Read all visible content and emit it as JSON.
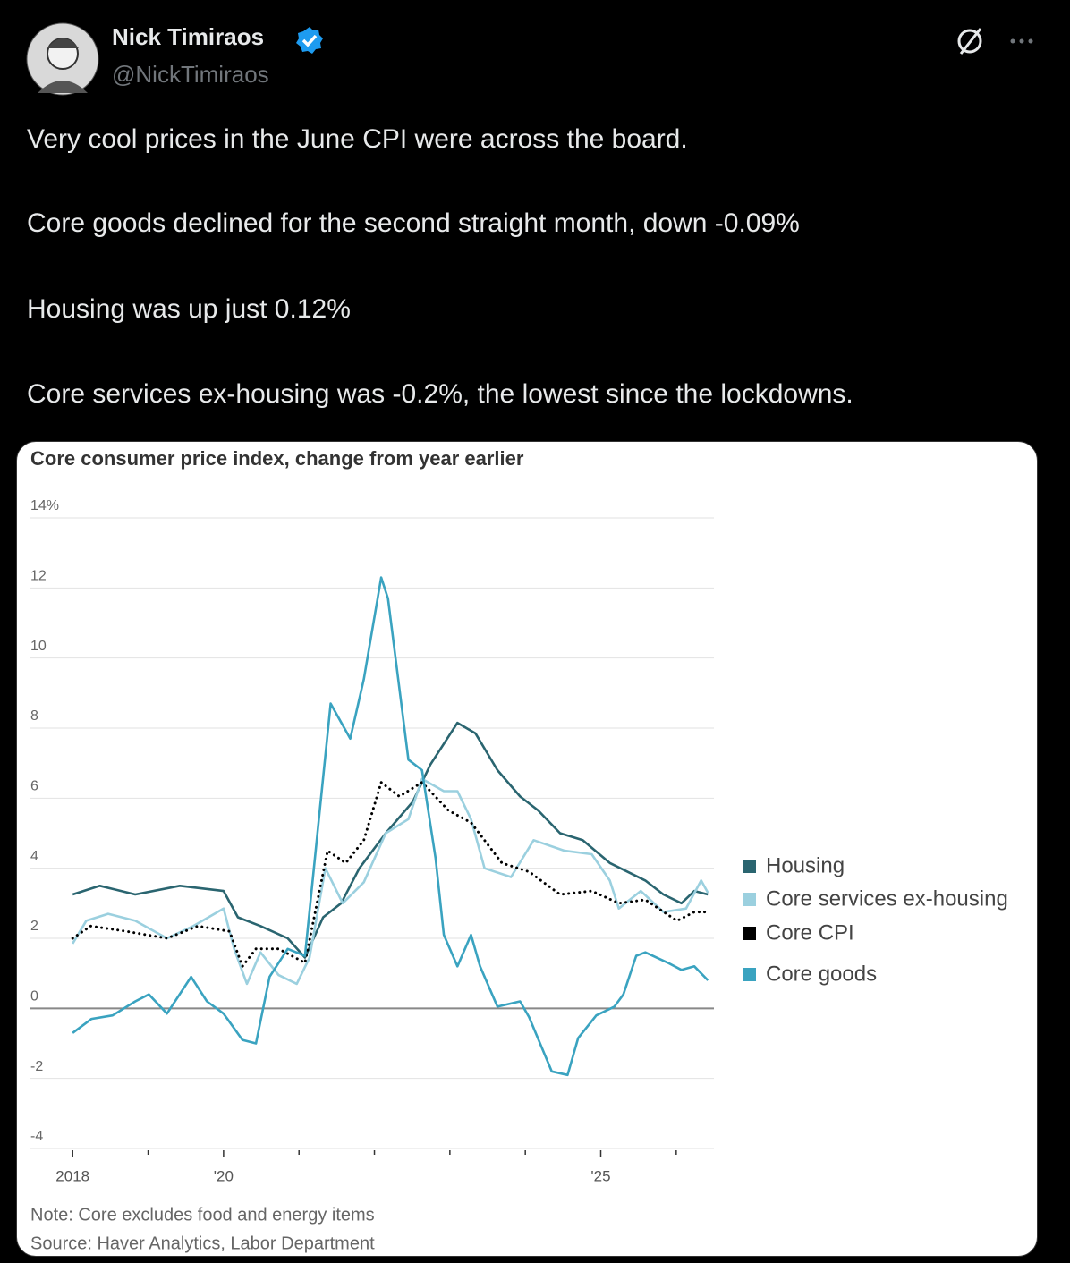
{
  "tweet": {
    "name": "Nick Timiraos",
    "handle": "@NickTimiraos",
    "text": [
      "Very cool prices in the June CPI were across the board.",
      "Core goods declined for the second straight month, down -0.09%",
      "Housing was up just 0.12%",
      "Core services ex-housing was -0.2%, the lowest since the lockdowns."
    ]
  },
  "chart_data": {
    "type": "line",
    "title": "Core consumer price index, change from year earlier",
    "note": "Note: Core excludes food and energy items",
    "source": "Source: Haver Analytics, Labor Department",
    "xlim": [
      2017.44,
      2026.5
    ],
    "xticks": [
      2018,
      {
        "value": 2020,
        "label": "'20"
      },
      {
        "value": 2025,
        "label": "'25"
      }
    ],
    "xminor_ticks": [
      2019,
      2021,
      2022,
      2023,
      2024,
      2026
    ],
    "ylim": [
      -4,
      14
    ],
    "yticks": [
      {
        "value": 14,
        "label": "14%"
      },
      12,
      10,
      8,
      6,
      4,
      2,
      0,
      -2,
      -4
    ],
    "grid": true,
    "series": [
      {
        "name": "Housing",
        "color": "#2a6570",
        "style": "solid",
        "x": [
          2018.0,
          2018.36,
          2018.83,
          2019.42,
          2020.0,
          2020.19,
          2020.49,
          2020.85,
          2021.08,
          2021.32,
          2021.56,
          2021.8,
          2022.15,
          2022.51,
          2022.74,
          2023.1,
          2023.34,
          2023.63,
          2023.93,
          2024.17,
          2024.46,
          2024.76,
          2025.12,
          2025.59,
          2025.83,
          2026.07,
          2026.24,
          2026.42
        ],
        "values": [
          3.25,
          3.5,
          3.25,
          3.5,
          3.35,
          2.6,
          2.35,
          2.0,
          1.45,
          2.6,
          3.0,
          4.0,
          5.0,
          5.9,
          6.95,
          8.15,
          7.85,
          6.8,
          6.05,
          5.65,
          5.0,
          4.8,
          4.15,
          3.65,
          3.25,
          3.0,
          3.35,
          3.25
        ]
      },
      {
        "name": "Core services ex-housing",
        "color": "#9bd0df",
        "style": "solid",
        "x": [
          2018.0,
          2018.18,
          2018.47,
          2018.83,
          2019.25,
          2019.6,
          2020.0,
          2020.14,
          2020.31,
          2020.49,
          2020.73,
          2020.97,
          2021.14,
          2021.35,
          2021.58,
          2021.86,
          2022.15,
          2022.45,
          2022.63,
          2022.92,
          2023.1,
          2023.28,
          2023.46,
          2023.81,
          2024.11,
          2024.52,
          2024.88,
          2025.12,
          2025.24,
          2025.53,
          2025.83,
          2026.13,
          2026.33,
          2026.42
        ],
        "values": [
          1.85,
          2.5,
          2.7,
          2.5,
          2.0,
          2.35,
          2.85,
          1.7,
          0.7,
          1.6,
          0.95,
          0.7,
          1.45,
          4.0,
          3.0,
          3.6,
          5.0,
          5.4,
          6.55,
          6.2,
          6.2,
          5.4,
          4.0,
          3.75,
          4.8,
          4.5,
          4.4,
          3.65,
          2.85,
          3.35,
          2.75,
          2.85,
          3.65,
          3.3
        ]
      },
      {
        "name": "Core CPI",
        "color": "#000000",
        "style": "dotted",
        "x": [
          2018.0,
          2018.24,
          2018.71,
          2019.25,
          2019.66,
          2020.08,
          2020.25,
          2020.43,
          2020.73,
          2021.08,
          2021.38,
          2021.62,
          2021.86,
          2022.09,
          2022.33,
          2022.63,
          2022.98,
          2023.28,
          2023.69,
          2024.05,
          2024.46,
          2024.88,
          2025.24,
          2025.59,
          2026.01,
          2026.24,
          2026.42
        ],
        "values": [
          2.0,
          2.35,
          2.2,
          2.0,
          2.35,
          2.2,
          1.2,
          1.7,
          1.7,
          1.3,
          4.5,
          4.15,
          4.8,
          6.45,
          6.05,
          6.45,
          5.65,
          5.3,
          4.15,
          3.9,
          3.25,
          3.35,
          3.0,
          3.1,
          2.5,
          2.75,
          2.75
        ]
      },
      {
        "name": "Core goods",
        "color": "#3aa3c0",
        "style": "solid",
        "x": [
          2018.0,
          2018.25,
          2018.53,
          2018.83,
          2019.01,
          2019.25,
          2019.57,
          2019.78,
          2020.0,
          2020.25,
          2020.43,
          2020.61,
          2020.85,
          2021.08,
          2021.42,
          2021.68,
          2021.86,
          2022.09,
          2022.18,
          2022.45,
          2022.63,
          2022.81,
          2022.92,
          2023.1,
          2023.28,
          2023.4,
          2023.63,
          2023.93,
          2024.05,
          2024.35,
          2024.56,
          2024.7,
          2024.94,
          2025.18,
          2025.3,
          2025.47,
          2025.59,
          2025.89,
          2026.07,
          2026.24,
          2026.42
        ],
        "values": [
          -0.7,
          -0.3,
          -0.2,
          0.2,
          0.4,
          -0.15,
          0.9,
          0.2,
          -0.15,
          -0.9,
          -1.0,
          0.9,
          1.7,
          1.5,
          8.7,
          7.7,
          9.4,
          12.3,
          11.7,
          7.1,
          6.8,
          4.3,
          2.1,
          1.2,
          2.1,
          1.2,
          0.05,
          0.2,
          -0.25,
          -1.8,
          -1.9,
          -0.85,
          -0.2,
          0.05,
          0.4,
          1.5,
          1.6,
          1.3,
          1.1,
          1.2,
          0.8
        ]
      }
    ]
  }
}
